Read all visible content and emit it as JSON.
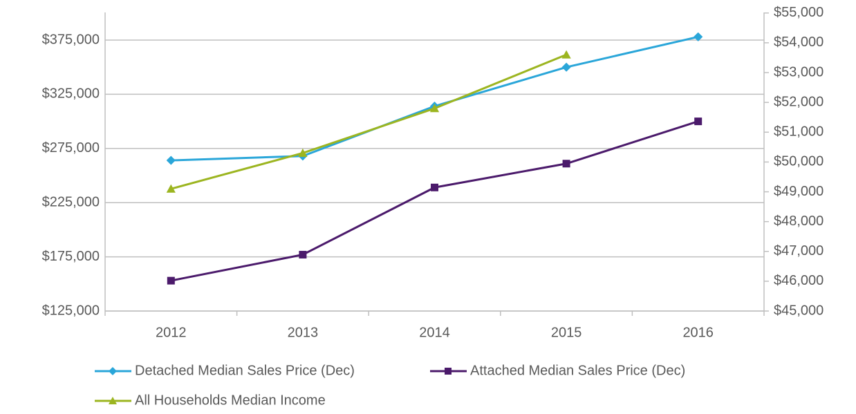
{
  "chart_data": {
    "type": "line",
    "categories": [
      "2012",
      "2013",
      "2014",
      "2015",
      "2016"
    ],
    "series": [
      {
        "name": "Detached Median Sales Price (Dec)",
        "color": "#2aa6d9",
        "marker": "diamond",
        "values": [
          264000,
          268000,
          314000,
          350000,
          378000
        ]
      },
      {
        "name": "Attached Median Sales Price (Dec)",
        "color": "#4b1a6b",
        "marker": "square",
        "values": [
          153000,
          177000,
          239000,
          261000,
          300000
        ]
      },
      {
        "name": "All Households Median Income",
        "color": "#9cb520",
        "marker": "triangle",
        "axis": "y2",
        "values": [
          49100,
          50300,
          51800,
          53600,
          null
        ]
      }
    ],
    "ylim": [
      125000,
      400000
    ],
    "yticks": [
      {
        "value": 125000,
        "label": "$125,000"
      },
      {
        "value": 175000,
        "label": "$175,000"
      },
      {
        "value": 225000,
        "label": "$225,000"
      },
      {
        "value": 275000,
        "label": "$275,000"
      },
      {
        "value": 325000,
        "label": "$325,000"
      },
      {
        "value": 375000,
        "label": "$375,000"
      }
    ],
    "y2lim": [
      45000,
      55000
    ],
    "y2ticks": [
      {
        "value": 45000,
        "label": "$45,000"
      },
      {
        "value": 46000,
        "label": "$46,000"
      },
      {
        "value": 47000,
        "label": "$47,000"
      },
      {
        "value": 48000,
        "label": "$48,000"
      },
      {
        "value": 49000,
        "label": "$49,000"
      },
      {
        "value": 50000,
        "label": "$50,000"
      },
      {
        "value": 51000,
        "label": "$51,000"
      },
      {
        "value": 52000,
        "label": "$52,000"
      },
      {
        "value": 53000,
        "label": "$53,000"
      },
      {
        "value": 54000,
        "label": "$54,000"
      },
      {
        "value": 55000,
        "label": "$55,000"
      }
    ],
    "grid": true,
    "legend": "bottom"
  }
}
